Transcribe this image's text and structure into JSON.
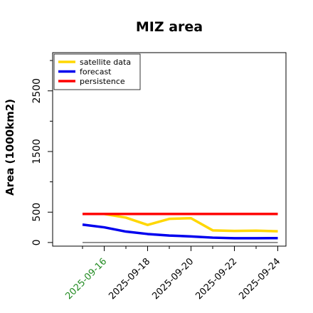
{
  "chart_data": {
    "type": "line",
    "title": "MIZ area",
    "xlabel": "",
    "ylabel": "Area (1000km2)",
    "x": [
      "2025-09-15",
      "2025-09-16",
      "2025-09-17",
      "2025-09-18",
      "2025-09-19",
      "2025-09-20",
      "2025-09-21",
      "2025-09-22",
      "2025-09-23",
      "2025-09-24"
    ],
    "x_tick_labels": [
      "2025-09-16",
      "2025-09-18",
      "2025-09-20",
      "2025-09-22",
      "2025-09-24"
    ],
    "x_tick_colors": [
      "#228b22",
      "#000000",
      "#000000",
      "#000000",
      "#000000"
    ],
    "ylim": [
      -60,
      3130
    ],
    "y_major_ticks": [
      0,
      500,
      1500,
      2500
    ],
    "y_minor_ticks": [
      1000,
      2000,
      3000
    ],
    "grid": false,
    "legend_position": "top-left",
    "series": [
      {
        "name": "satellite data",
        "color": "#ffd700",
        "values": [
          470,
          470,
          410,
          290,
          390,
          400,
          200,
          190,
          195,
          185
        ]
      },
      {
        "name": "forecast",
        "color": "#0000ee",
        "values": [
          295,
          250,
          180,
          140,
          115,
          100,
          80,
          70,
          70,
          72
        ]
      },
      {
        "name": "persistence",
        "color": "#ff0000",
        "values": [
          470,
          470,
          470,
          470,
          470,
          470,
          470,
          470,
          470,
          470
        ]
      }
    ],
    "reference_lines": [
      {
        "color": "#707070",
        "values": [
          0,
          0,
          0,
          0,
          0,
          0,
          0,
          0,
          0,
          0
        ]
      }
    ]
  }
}
